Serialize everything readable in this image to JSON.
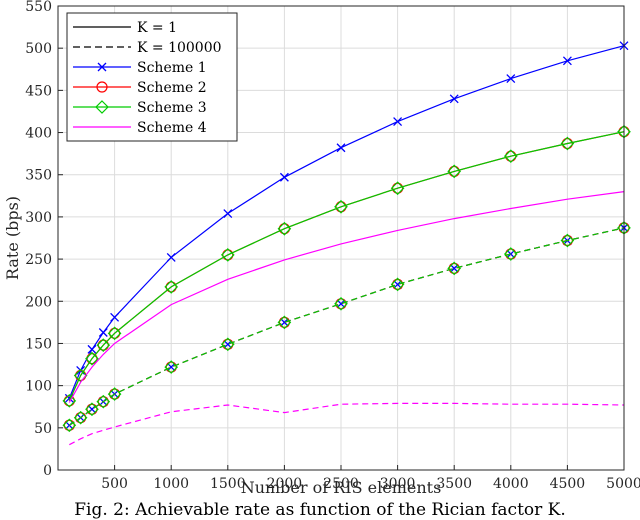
{
  "chart_data": {
    "type": "line",
    "title": "",
    "xlabel": "Number of RIS elements",
    "ylabel": "Rate (bps)",
    "xlim": [
      0,
      5000
    ],
    "ylim": [
      0,
      550
    ],
    "xticks": [
      500,
      1000,
      1500,
      2000,
      2500,
      3000,
      3500,
      4000,
      4500,
      5000
    ],
    "yticks": [
      0,
      50,
      100,
      150,
      200,
      250,
      300,
      350,
      400,
      450,
      500,
      550
    ],
    "grid": true,
    "legend_position": "top-left",
    "legend": [
      {
        "label": "K = 1",
        "style": "solid",
        "color": "#000000",
        "marker": "none"
      },
      {
        "label": "K = 100000",
        "style": "dashed",
        "color": "#000000",
        "marker": "none"
      },
      {
        "label": "Scheme 1",
        "style": "solid",
        "color": "#0000ff",
        "marker": "x"
      },
      {
        "label": "Scheme 2",
        "style": "solid",
        "color": "#ff0000",
        "marker": "circle"
      },
      {
        "label": "Scheme 3",
        "style": "solid",
        "color": "#00cc00",
        "marker": "diamond"
      },
      {
        "label": "Scheme 4",
        "style": "solid",
        "color": "#ff00ff",
        "marker": "none"
      }
    ],
    "x": [
      100,
      200,
      300,
      400,
      500,
      1000,
      1500,
      2000,
      2500,
      3000,
      3500,
      4000,
      4500,
      5000
    ],
    "series": [
      {
        "scheme": 1,
        "k": "1",
        "color": "#0000ff",
        "dashed": false,
        "marker": "x",
        "values": [
          85,
          118,
          143,
          163,
          181,
          252,
          304,
          347,
          382,
          413,
          440,
          464,
          485,
          503
        ]
      },
      {
        "scheme": 2,
        "k": "1",
        "color": "#ff0000",
        "dashed": false,
        "marker": "circle",
        "values": [
          82,
          112,
          132,
          148,
          162,
          217,
          255,
          286,
          312,
          334,
          354,
          372,
          387,
          401
        ]
      },
      {
        "scheme": 3,
        "k": "1",
        "color": "#00cc00",
        "dashed": false,
        "marker": "diamond",
        "values": [
          82,
          112,
          132,
          148,
          162,
          217,
          255,
          286,
          312,
          334,
          354,
          372,
          387,
          401
        ]
      },
      {
        "scheme": 4,
        "k": "1",
        "color": "#ff00ff",
        "dashed": false,
        "marker": "none",
        "values": [
          80,
          104,
          122,
          137,
          150,
          196,
          226,
          249,
          268,
          284,
          298,
          310,
          321,
          330
        ]
      },
      {
        "scheme": 1,
        "k": "100000",
        "color": "#0000ff",
        "dashed": true,
        "marker": "x",
        "values": [
          53,
          62,
          72,
          81,
          90,
          122,
          149,
          175,
          197,
          220,
          239,
          256,
          272,
          287
        ]
      },
      {
        "scheme": 2,
        "k": "100000",
        "color": "#ff0000",
        "dashed": true,
        "marker": "circle",
        "values": [
          53,
          62,
          72,
          81,
          90,
          122,
          149,
          175,
          197,
          220,
          239,
          256,
          272,
          287
        ]
      },
      {
        "scheme": 3,
        "k": "100000",
        "color": "#00cc00",
        "dashed": true,
        "marker": "diamond",
        "values": [
          53,
          62,
          72,
          81,
          90,
          122,
          149,
          175,
          197,
          220,
          239,
          256,
          272,
          287
        ]
      },
      {
        "scheme": 4,
        "k": "100000",
        "color": "#ff00ff",
        "dashed": true,
        "marker": "none",
        "values": [
          30,
          37,
          43,
          47,
          51,
          69,
          77,
          68,
          78,
          79,
          79,
          78,
          78,
          77
        ]
      }
    ]
  },
  "caption": "Fig. 2: Achievable rate as function of the Rician factor K."
}
